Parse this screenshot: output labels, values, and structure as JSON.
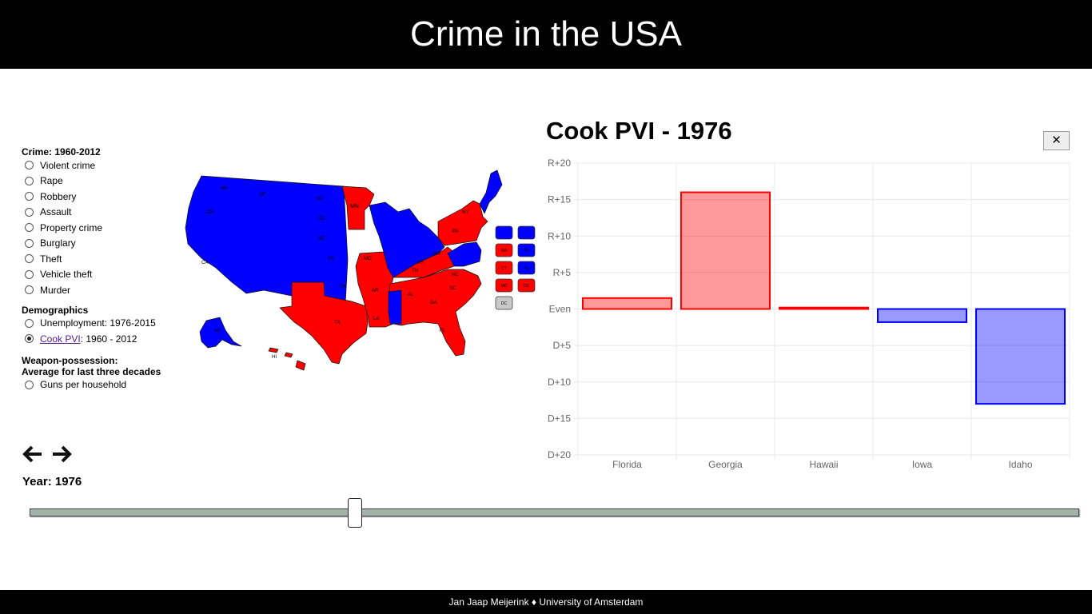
{
  "header": {
    "title": "Crime in the USA"
  },
  "menu": {
    "crime_heading": "Crime: 1960-2012",
    "crime_options": [
      "Violent crime",
      "Rape",
      "Robbery",
      "Assault",
      "Property crime",
      "Burglary",
      "Theft",
      "Vehicle theft",
      "Murder"
    ],
    "demographics_heading": "Demographics",
    "unemployment_label": "Unemployment: 1976-2015",
    "cook_pvi_link": "Cook PVI",
    "cook_pvi_range": ": 1960 - 2012",
    "weapon_heading_line1": "Weapon-possession:",
    "weapon_heading_line2": "Average for last three decades",
    "guns_label": "Guns per household",
    "selected": "Cook PVI"
  },
  "controls": {
    "year_label": "Year: 1976",
    "slider_min": 1960,
    "slider_max": 2012,
    "slider_value": 1976
  },
  "colors": {
    "republican": "#ff0000",
    "democrat": "#0000ff",
    "dc": "#c8c8c8"
  },
  "map": {
    "small_states": [
      {
        "abbr": "",
        "party": "D"
      },
      {
        "abbr": "",
        "party": "D"
      },
      {
        "abbr": "MA",
        "party": "R"
      },
      {
        "abbr": "RI",
        "party": "D"
      },
      {
        "abbr": "CT",
        "party": "R"
      },
      {
        "abbr": "NJ",
        "party": "D"
      },
      {
        "abbr": "MD",
        "party": "R"
      },
      {
        "abbr": "DE",
        "party": "R"
      },
      {
        "abbr": "DC",
        "party": "N"
      }
    ]
  },
  "chart": {
    "title": "Cook PVI - 1976",
    "close_label": "✕"
  },
  "chart_data": {
    "type": "bar",
    "title": "Cook PVI - 1976",
    "categories": [
      "Florida",
      "Georgia",
      "Hawaii",
      "Iowa",
      "Idaho"
    ],
    "values": [
      1.5,
      16,
      0.2,
      -1.8,
      -13
    ],
    "value_sign": "positive = Republican (R+), negative = Democrat (D+)",
    "ylim": [
      -20,
      20
    ],
    "yticks": [
      20,
      15,
      10,
      5,
      0,
      -5,
      -10,
      -15,
      -20
    ],
    "ytick_labels": [
      "R+20",
      "R+15",
      "R+10",
      "R+5",
      "Even",
      "D+5",
      "D+10",
      "D+15",
      "D+20"
    ],
    "grid": true
  },
  "footer": {
    "text": "Jan Jaap Meijerink ♦ University of Amsterdam"
  }
}
